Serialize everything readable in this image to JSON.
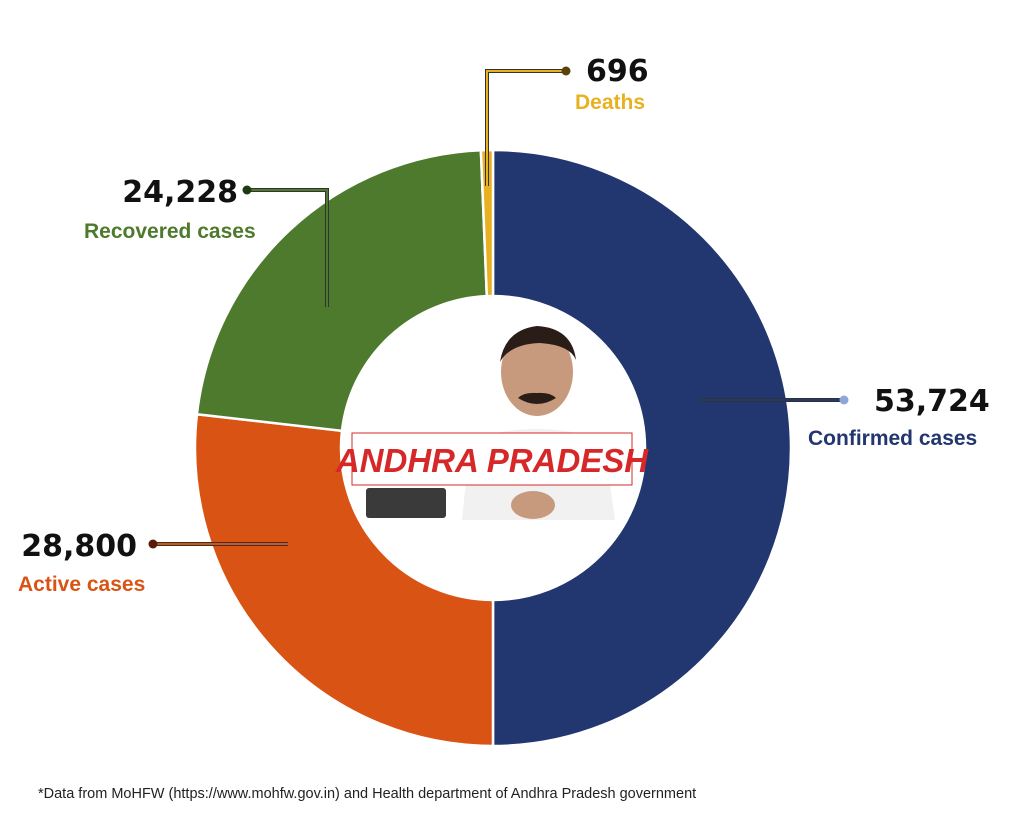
{
  "chart_data": {
    "type": "pie",
    "variant": "donut",
    "center_label": "ANDHRA PRADESH",
    "slices": [
      {
        "label": "Confirmed cases",
        "value": 53724,
        "value_label": "53,724",
        "color": "#22366f"
      },
      {
        "label": "Active cases",
        "value": 28800,
        "value_label": "28,800",
        "color": "#d95414"
      },
      {
        "label": "Recovered cases",
        "value": 24228,
        "value_label": "24,228",
        "color": "#4d7a2c"
      },
      {
        "label": "Deaths",
        "value": 696,
        "value_label": "696",
        "color": "#e8b121"
      }
    ],
    "legend": "none",
    "footnote": "*Data from MoHFW (https://www.mohfw.gov.in) and Health department of Andhra Pradesh government"
  },
  "colors": {
    "banner_text": "#d62828",
    "banner_border": "#d62828"
  },
  "icons": {
    "center_photo": "person-portrait-icon"
  }
}
